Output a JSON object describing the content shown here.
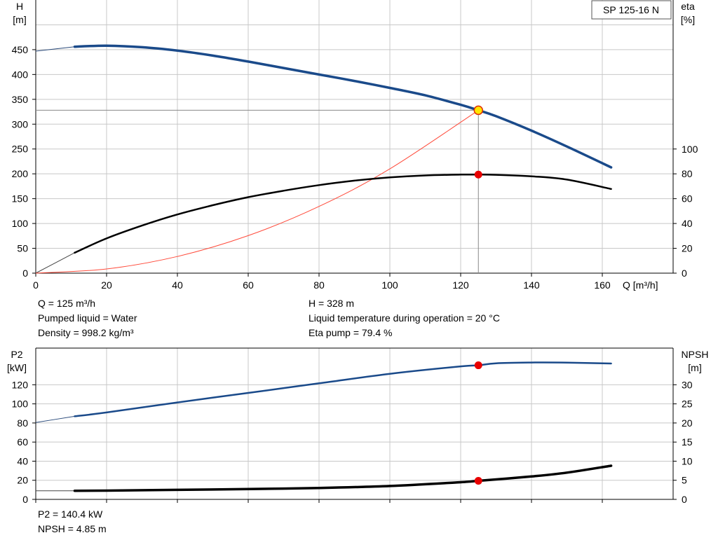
{
  "chart_data": [
    {
      "type": "line",
      "model_label": "SP 125-16 N",
      "x_axis": {
        "label": "Q [m³/h]",
        "range": [
          0,
          180
        ],
        "ticks": [
          0,
          20,
          40,
          60,
          80,
          100,
          120,
          140,
          160
        ]
      },
      "y_left": {
        "label": [
          "H",
          "[m]"
        ],
        "range": [
          0,
          450
        ],
        "ticks": [
          0,
          50,
          100,
          150,
          200,
          250,
          300,
          350,
          400,
          450
        ]
      },
      "y_right": {
        "label": [
          "eta",
          "[%]"
        ],
        "range": [
          0,
          100
        ],
        "ticks": [
          0,
          20,
          40,
          60,
          80,
          100
        ]
      },
      "grid": true,
      "series": [
        {
          "key": "head",
          "axis": "left",
          "x": [
            11,
            20,
            30,
            40,
            50,
            60,
            70,
            80,
            90,
            100,
            110,
            120,
            125,
            130,
            140,
            150,
            162.5
          ],
          "y": [
            456,
            458,
            455,
            448,
            438,
            426,
            413,
            400,
            387,
            373,
            358,
            339,
            328,
            316,
            287,
            255,
            213
          ]
        },
        {
          "key": "eta",
          "axis": "right",
          "x": [
            11,
            20,
            30,
            40,
            50,
            60,
            70,
            80,
            90,
            100,
            110,
            120,
            125,
            130,
            140,
            150,
            162.5
          ],
          "y": [
            16.5,
            28,
            38.3,
            47.3,
            54.7,
            61.2,
            66.4,
            70.9,
            74.5,
            77.1,
            78.7,
            79.4,
            79.4,
            79.2,
            78,
            75.4,
            67.8
          ]
        }
      ],
      "extensions": [
        {
          "axis": "left",
          "x": [
            0,
            11
          ],
          "y": [
            447,
            456
          ]
        },
        {
          "axis": "right",
          "x": [
            0,
            11
          ],
          "y": [
            0,
            16.5
          ]
        }
      ],
      "system_curve": {
        "axis": "left",
        "x": [
          0,
          20,
          40,
          60,
          80,
          100,
          125
        ],
        "y": [
          0,
          8.4,
          33.6,
          75.6,
          134.4,
          210,
          328
        ]
      },
      "duty_point": {
        "q": 125,
        "h": 328,
        "eta": 79.4
      },
      "annotations": {
        "left": [
          "Q = 125 m³/h",
          "Pumped liquid = Water",
          "Density = 998.2 kg/m³"
        ],
        "right": [
          "H = 328 m",
          "Liquid temperature during operation = 20 °C",
          "Eta pump = 79.4 %"
        ]
      }
    },
    {
      "type": "line",
      "x_axis": {
        "range": [
          0,
          180
        ]
      },
      "y_left": {
        "label": [
          "P2",
          "[kW]"
        ],
        "range": [
          0,
          140
        ],
        "ticks": [
          0,
          20,
          40,
          60,
          80,
          100,
          120
        ]
      },
      "y_right": {
        "label": [
          "NPSH",
          "[m]"
        ],
        "range": [
          0,
          35
        ],
        "ticks": [
          0,
          5,
          10,
          15,
          20,
          25,
          30
        ]
      },
      "grid": true,
      "series": [
        {
          "key": "p2",
          "axis": "left",
          "x": [
            11,
            20,
            40,
            60,
            80,
            100,
            120,
            125,
            130,
            140,
            150,
            162.5
          ],
          "y": [
            87,
            91,
            101.5,
            111.5,
            121.5,
            131.5,
            139.3,
            140.4,
            142.5,
            143.3,
            143.2,
            142.3
          ]
        },
        {
          "key": "npsh",
          "axis": "right",
          "x": [
            11,
            20,
            40,
            60,
            80,
            100,
            120,
            125,
            140,
            150,
            162.5
          ],
          "y": [
            2.25,
            2.3,
            2.5,
            2.7,
            2.98,
            3.5,
            4.5,
            4.85,
            6,
            7,
            8.8
          ]
        }
      ],
      "extensions": [
        {
          "axis": "left",
          "x": [
            0,
            11
          ],
          "y": [
            80.5,
            87
          ]
        },
        {
          "axis": "right",
          "x": [
            0,
            11
          ],
          "y": [
            2.25,
            2.25
          ]
        }
      ],
      "duty_point": {
        "q": 125,
        "p2": 140.4,
        "npsh": 4.85
      },
      "annotations": {
        "left": [
          "P2 = 140.4 kW",
          "NPSH = 4.85 m"
        ]
      }
    }
  ]
}
